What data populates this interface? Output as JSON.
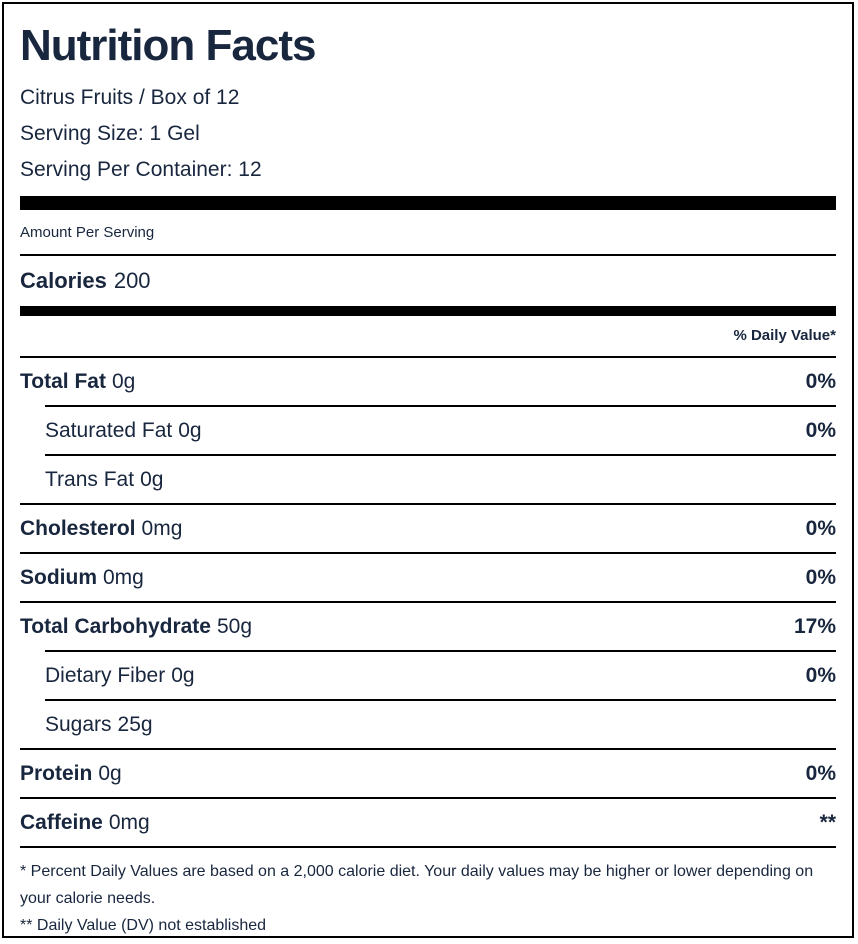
{
  "panel": {
    "title": "Nutrition Facts",
    "product": "Citrus Fruits / Box of 12",
    "serving_size": "Serving Size: 1 Gel",
    "servings_per_container": "Serving Per Container: 12",
    "amount_per_serving": "Amount Per Serving",
    "calories": {
      "label": "Calories",
      "value": "200"
    },
    "daily_value_header": "% Daily Value*",
    "rows": [
      {
        "name": "Total Fat",
        "amount": "0g",
        "dv": "0%"
      },
      {
        "name": "Saturated Fat",
        "amount": "0g",
        "dv": "0%"
      },
      {
        "name": "Trans Fat",
        "amount": "0g",
        "dv": ""
      },
      {
        "name": "Cholesterol",
        "amount": "0mg",
        "dv": "0%"
      },
      {
        "name": "Sodium",
        "amount": "0mg",
        "dv": "0%"
      },
      {
        "name": "Total Carbohydrate",
        "amount": "50g",
        "dv": "17%"
      },
      {
        "name": "Dietary Fiber",
        "amount": "0g",
        "dv": "0%"
      },
      {
        "name": "Sugars",
        "amount": "25g",
        "dv": ""
      },
      {
        "name": "Protein",
        "amount": "0g",
        "dv": "0%"
      },
      {
        "name": "Caffeine",
        "amount": "0mg",
        "dv": "**"
      }
    ],
    "footnote_percent": "* Percent Daily Values are based on a 2,000 calorie diet. Your daily values may be higher or lower depending on your calorie needs.",
    "footnote_dv": "** Daily Value (DV) not established",
    "colors": {
      "text": "#18263e",
      "rule": "#000000",
      "background": "#ffffff"
    }
  }
}
